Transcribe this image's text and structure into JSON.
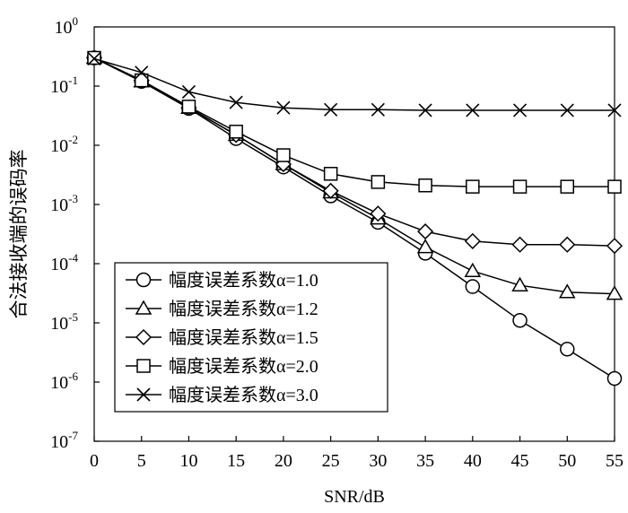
{
  "chart_data": {
    "type": "line",
    "xlabel": "SNR/dB",
    "ylabel": "合法接收端的误码率",
    "xlim": [
      0,
      55
    ],
    "ylim": [
      1e-07,
      1
    ],
    "yscale": "log",
    "grid": false,
    "legend_position": "lower-left",
    "x": [
      0,
      5,
      10,
      15,
      20,
      25,
      30,
      35,
      40,
      45,
      50,
      55
    ],
    "x_ticks": [
      "0",
      "5",
      "10",
      "15",
      "20",
      "25",
      "30",
      "35",
      "40",
      "45",
      "50",
      "55"
    ],
    "y_ticks": [
      {
        "base": "10",
        "exp": "0"
      },
      {
        "base": "10",
        "exp": "-1"
      },
      {
        "base": "10",
        "exp": "-2"
      },
      {
        "base": "10",
        "exp": "-3"
      },
      {
        "base": "10",
        "exp": "-4"
      },
      {
        "base": "10",
        "exp": "-5"
      },
      {
        "base": "10",
        "exp": "-6"
      },
      {
        "base": "10",
        "exp": "-7"
      }
    ],
    "series": [
      {
        "name": "幅度误差系数α=1.0",
        "marker": "circle",
        "values": [
          0.3,
          0.12,
          0.042,
          0.013,
          0.0043,
          0.0014,
          0.0005,
          0.00015,
          4.1e-05,
          1.1e-05,
          3.6e-06,
          1.15e-06
        ]
      },
      {
        "name": "幅度误差系数α=1.2",
        "marker": "triangle",
        "values": [
          0.3,
          0.12,
          0.043,
          0.015,
          0.0048,
          0.0016,
          0.00058,
          0.00019,
          7.5e-05,
          4.3e-05,
          3.3e-05,
          3.1e-05
        ]
      },
      {
        "name": "幅度误差系数α=1.5",
        "marker": "diamond",
        "values": [
          0.3,
          0.125,
          0.043,
          0.015,
          0.0048,
          0.0017,
          0.0007,
          0.00035,
          0.00024,
          0.00021,
          0.00021,
          0.0002
        ]
      },
      {
        "name": "幅度误差系数α=2.0",
        "marker": "square",
        "values": [
          0.3,
          0.125,
          0.045,
          0.017,
          0.0068,
          0.0033,
          0.0024,
          0.0021,
          0.002,
          0.002,
          0.002,
          0.002
        ]
      },
      {
        "name": "幅度误差系数α=3.0",
        "marker": "cross",
        "values": [
          0.29,
          0.17,
          0.08,
          0.053,
          0.043,
          0.04,
          0.04,
          0.039,
          0.039,
          0.039,
          0.039,
          0.039
        ]
      }
    ]
  }
}
